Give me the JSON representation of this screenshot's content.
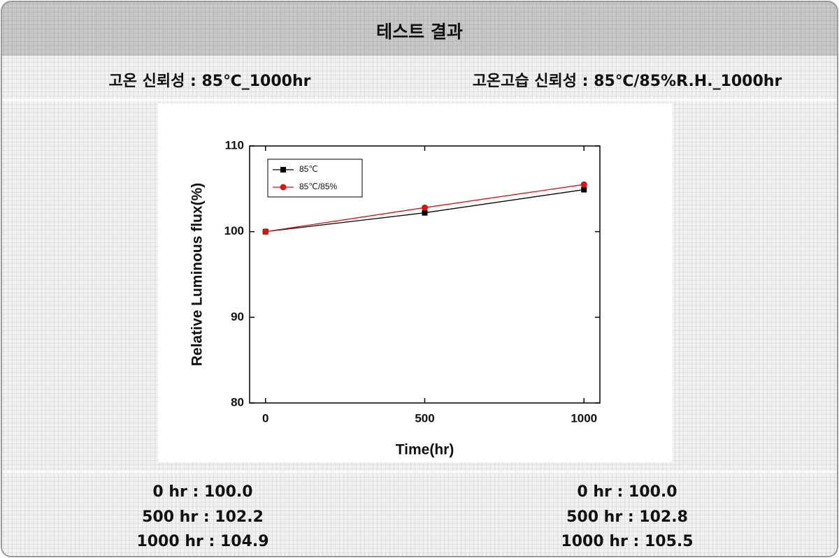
{
  "header": {
    "title": "테스트 결과"
  },
  "conditions": [
    "고온 신뢰성 : 85℃_1000hr",
    "고온고습 신뢰성  : 85℃/85%R.H._1000hr"
  ],
  "chart_data": {
    "type": "line",
    "x_label": "Time(hr)",
    "y_label": "Relative Luminous flux(%)",
    "x": [
      0,
      500,
      1000
    ],
    "series": [
      {
        "name": "85℃",
        "color": "#000000",
        "marker": "square",
        "values": [
          100,
          102.2,
          104.9
        ]
      },
      {
        "name": "85℃/85%",
        "color": "#e01010",
        "marker": "circle",
        "values": [
          100,
          102.8,
          105.5
        ]
      }
    ],
    "xlim": [
      -50,
      1050
    ],
    "ylim": [
      80,
      110
    ],
    "xticks": [
      0,
      500,
      1000
    ],
    "yticks": [
      80,
      90,
      100,
      110
    ],
    "legend": "upper left"
  },
  "results": [
    [
      "0 hr : 100.0",
      "500 hr : 102.2",
      "1000 hr : 104.9"
    ],
    [
      "0 hr : 100.0",
      "500 hr : 102.8",
      "1000 hr : 105.5"
    ]
  ]
}
